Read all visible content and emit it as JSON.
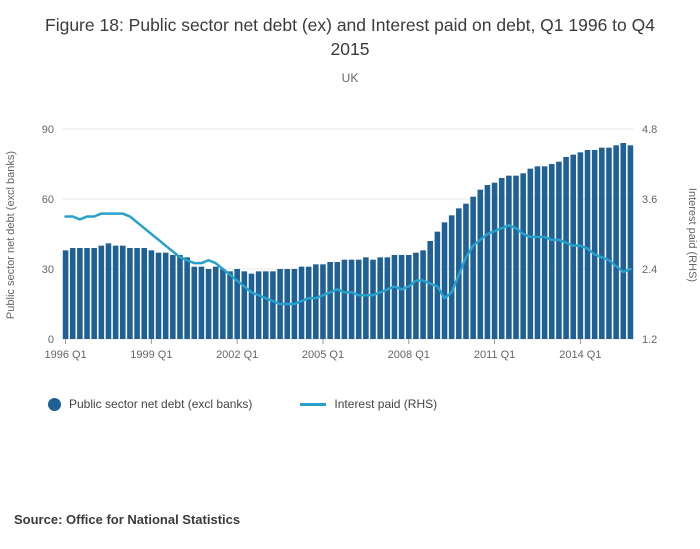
{
  "title": "Figure 18: Public sector net debt (ex) and Interest paid on debt, Q1 1996 to Q4 2015",
  "subtitle": "UK",
  "source": "Source: Office for National Statistics",
  "legend": [
    {
      "label": "Public sector net debt (excl banks)",
      "type": "dot",
      "color": "#206095"
    },
    {
      "label": "Interest paid (RHS)",
      "type": "line",
      "color": "#27a0cc"
    }
  ],
  "chart_data": {
    "type": "bar",
    "title": "Figure 18: Public sector net debt (ex) and Interest paid on debt, Q1 1996 to Q4 2015",
    "subtitle": "UK",
    "grid": true,
    "legend_position": "bottom-left",
    "categories": [
      "1996 Q1",
      "1996 Q2",
      "1996 Q3",
      "1996 Q4",
      "1997 Q1",
      "1997 Q2",
      "1997 Q3",
      "1997 Q4",
      "1998 Q1",
      "1998 Q2",
      "1998 Q3",
      "1998 Q4",
      "1999 Q1",
      "1999 Q2",
      "1999 Q3",
      "1999 Q4",
      "2000 Q1",
      "2000 Q2",
      "2000 Q3",
      "2000 Q4",
      "2001 Q1",
      "2001 Q2",
      "2001 Q3",
      "2001 Q4",
      "2002 Q1",
      "2002 Q2",
      "2002 Q3",
      "2002 Q4",
      "2003 Q1",
      "2003 Q2",
      "2003 Q3",
      "2003 Q4",
      "2004 Q1",
      "2004 Q2",
      "2004 Q3",
      "2004 Q4",
      "2005 Q1",
      "2005 Q2",
      "2005 Q3",
      "2005 Q4",
      "2006 Q1",
      "2006 Q2",
      "2006 Q3",
      "2006 Q4",
      "2007 Q1",
      "2007 Q2",
      "2007 Q3",
      "2007 Q4",
      "2008 Q1",
      "2008 Q2",
      "2008 Q3",
      "2008 Q4",
      "2009 Q1",
      "2009 Q2",
      "2009 Q3",
      "2009 Q4",
      "2010 Q1",
      "2010 Q2",
      "2010 Q3",
      "2010 Q4",
      "2011 Q1",
      "2011 Q2",
      "2011 Q3",
      "2011 Q4",
      "2012 Q1",
      "2012 Q2",
      "2012 Q3",
      "2012 Q4",
      "2013 Q1",
      "2013 Q2",
      "2013 Q3",
      "2013 Q4",
      "2014 Q1",
      "2014 Q2",
      "2014 Q3",
      "2014 Q4",
      "2015 Q1",
      "2015 Q2",
      "2015 Q3",
      "2015 Q4"
    ],
    "x_ticks": [
      {
        "index": 0,
        "label": "1996 Q1"
      },
      {
        "index": 12,
        "label": "1999 Q1"
      },
      {
        "index": 24,
        "label": "2002 Q1"
      },
      {
        "index": 36,
        "label": "2005 Q1"
      },
      {
        "index": 48,
        "label": "2008 Q1"
      },
      {
        "index": 60,
        "label": "2011 Q1"
      },
      {
        "index": 72,
        "label": "2014 Q1"
      }
    ],
    "left_axis": {
      "label": "Public sector net debt (excl banks)",
      "ticks": [
        0,
        30,
        60,
        90
      ],
      "range": [
        0,
        90
      ]
    },
    "right_axis": {
      "label": "Interest paid (RHS)",
      "ticks": [
        1.2,
        2.4,
        3.6,
        4.8
      ],
      "range": [
        1.2,
        4.8
      ]
    },
    "series": [
      {
        "name": "Public sector net debt (excl banks)",
        "type": "bar",
        "axis": "left",
        "color": "#206095",
        "values": [
          38,
          39,
          39,
          39,
          39,
          40,
          41,
          40,
          40,
          39,
          39,
          39,
          38,
          37,
          37,
          36,
          36,
          35,
          31,
          31,
          30,
          31,
          30,
          29,
          30,
          29,
          28,
          29,
          29,
          29,
          30,
          30,
          30,
          31,
          31,
          32,
          32,
          33,
          33,
          34,
          34,
          34,
          35,
          34,
          35,
          35,
          36,
          36,
          36,
          37,
          38,
          42,
          46,
          50,
          53,
          56,
          58,
          61,
          64,
          66,
          67,
          69,
          70,
          70,
          71,
          73,
          74,
          74,
          75,
          76,
          78,
          79,
          80,
          81,
          81,
          82,
          82,
          83,
          84,
          83
        ]
      },
      {
        "name": "Interest paid (RHS)",
        "type": "line",
        "axis": "right",
        "color": "#27a0cc",
        "values": [
          3.3,
          3.3,
          3.25,
          3.3,
          3.3,
          3.35,
          3.35,
          3.35,
          3.35,
          3.3,
          3.2,
          3.1,
          3.0,
          2.9,
          2.8,
          2.7,
          2.6,
          2.55,
          2.5,
          2.5,
          2.55,
          2.5,
          2.4,
          2.3,
          2.2,
          2.1,
          2.0,
          1.95,
          1.9,
          1.85,
          1.8,
          1.8,
          1.8,
          1.85,
          1.9,
          1.9,
          1.95,
          2.0,
          2.05,
          2.0,
          2.0,
          1.95,
          1.95,
          1.95,
          2.0,
          2.05,
          2.1,
          2.05,
          2.1,
          2.2,
          2.2,
          2.15,
          2.1,
          1.9,
          2.0,
          2.3,
          2.6,
          2.8,
          2.9,
          3.0,
          3.05,
          3.1,
          3.15,
          3.1,
          3.0,
          2.95,
          2.95,
          2.95,
          2.9,
          2.9,
          2.85,
          2.8,
          2.8,
          2.75,
          2.65,
          2.6,
          2.55,
          2.45,
          2.35,
          2.4
        ]
      }
    ]
  }
}
